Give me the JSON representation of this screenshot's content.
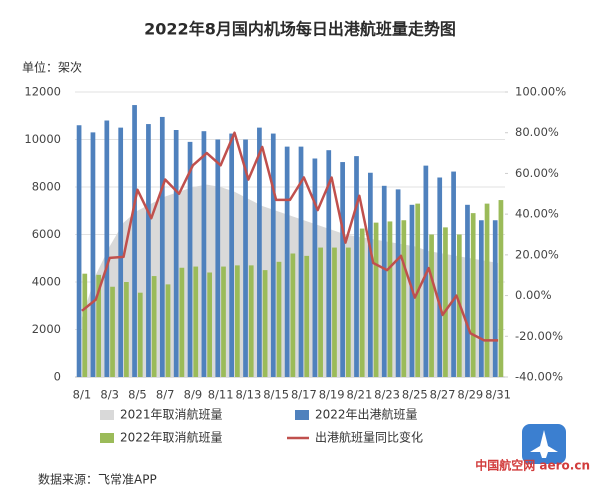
{
  "chart_data": {
    "type": "bar",
    "title": "2022年8月国内机场每日出港航班量走势图",
    "unit_label": "单位：架次",
    "source": "数据来源：飞常准APP",
    "watermark": "中国航空网 aero.cn",
    "categories": [
      "8/1",
      null,
      "8/3",
      null,
      "8/5",
      null,
      "8/7",
      null,
      "8/9",
      null,
      "8/11",
      null,
      "8/13",
      null,
      "8/15",
      null,
      "8/17",
      null,
      "8/19",
      null,
      "8/21",
      null,
      "8/23",
      null,
      "8/25",
      null,
      "8/27",
      null,
      "8/29",
      null,
      "8/31"
    ],
    "ylim": [
      0,
      12000
    ],
    "yticks": [
      0,
      2000,
      4000,
      6000,
      8000,
      10000,
      12000
    ],
    "y2lim": [
      -40,
      100
    ],
    "y2ticks": [
      {
        "value": -40,
        "label": "-40.00%"
      },
      {
        "value": -20,
        "label": "-20.00%"
      },
      {
        "value": 0,
        "label": "0.00%"
      },
      {
        "value": 20,
        "label": "20.00%"
      },
      {
        "value": 40,
        "label": "40.00%"
      },
      {
        "value": 60,
        "label": "60.00%"
      },
      {
        "value": 80,
        "label": "80.00%"
      },
      {
        "value": 100,
        "label": "100.00%"
      }
    ],
    "grid": true,
    "legend": "bottom",
    "series": [
      {
        "name": "2021年取消航班量",
        "kind": "area",
        "color": "#d9d9d9",
        "values": [
          2500,
          4300,
          5500,
          6500,
          7000,
          7300,
          7600,
          7800,
          8000,
          8100,
          8000,
          7800,
          7500,
          7200,
          7000,
          6800,
          6600,
          6400,
          6200,
          6000,
          5900,
          5800,
          5700,
          5600,
          5500,
          5300,
          5200,
          5100,
          5000,
          4900,
          4800
        ]
      },
      {
        "name": "2022年出港航班量",
        "kind": "bar",
        "color": "#4f81bd",
        "values": [
          10600,
          10300,
          10800,
          10500,
          11450,
          10650,
          10950,
          10400,
          9900,
          10350,
          10000,
          10250,
          10000,
          10500,
          10250,
          9700,
          9700,
          9200,
          9550,
          9050,
          9300,
          8600,
          8050,
          7900,
          7250,
          8900,
          8400,
          8650,
          7250,
          6600,
          6600
        ]
      },
      {
        "name": "2022年取消航班量",
        "kind": "bar",
        "color": "#9bbb59",
        "values": [
          4350,
          4300,
          3800,
          4000,
          3550,
          4250,
          3900,
          4600,
          4650,
          4400,
          4650,
          4700,
          4700,
          4500,
          4850,
          5200,
          5100,
          5450,
          5450,
          5450,
          6250,
          6500,
          6550,
          6600,
          7300,
          6000,
          6300,
          6000,
          6900,
          7300,
          7450
        ]
      },
      {
        "name": "出港航班量同比变化",
        "kind": "line",
        "axis": "y2",
        "color": "#c0504d",
        "values": [
          -7.5,
          -2,
          18.5,
          19,
          52,
          38,
          57,
          50,
          64,
          70,
          64,
          80,
          57,
          73,
          47,
          47,
          58,
          42,
          58,
          26,
          49,
          16,
          12.5,
          19.5,
          -1,
          13.5,
          -9.5,
          0,
          -18.5,
          -22,
          -22
        ]
      }
    ]
  }
}
